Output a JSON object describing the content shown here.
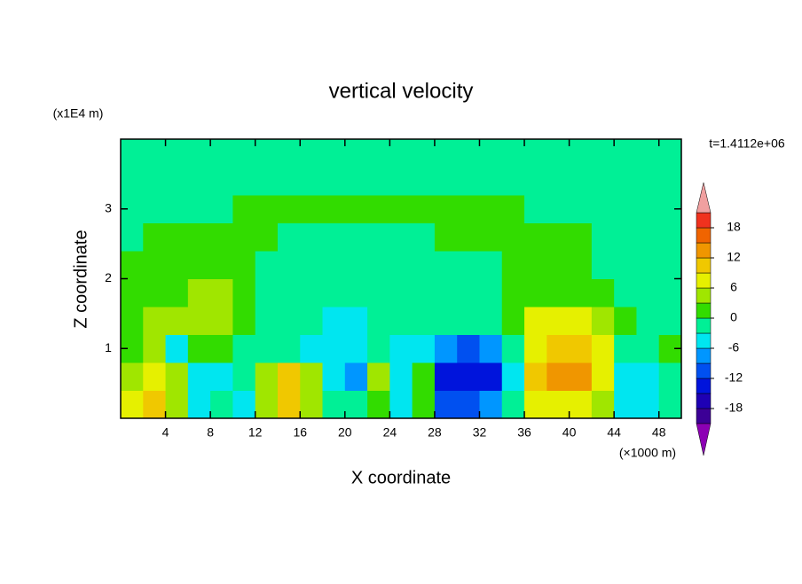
{
  "chart_data": {
    "type": "contour",
    "title": "vertical velocity",
    "xlabel": "X coordinate",
    "ylabel": "Z coordinate",
    "xunit": "(×1000 m)",
    "yunit": "(x1E4 m)",
    "time_label": "t=1.4112e+06",
    "xlim": [
      0,
      50
    ],
    "ylim": [
      0,
      4
    ],
    "xticks": [
      4,
      8,
      12,
      16,
      20,
      24,
      28,
      32,
      36,
      40,
      44,
      48
    ],
    "yticks": [
      1,
      2,
      3
    ],
    "x": [
      1,
      3,
      5,
      7,
      9,
      11,
      13,
      15,
      17,
      19,
      21,
      23,
      25,
      27,
      29,
      31,
      33,
      35,
      37,
      39,
      41,
      43,
      45,
      47,
      49
    ],
    "y": [
      0.2,
      0.6,
      1.0,
      1.4,
      1.8,
      2.2,
      2.6,
      3.0,
      3.4,
      3.8
    ],
    "z": [
      [
        8,
        10,
        5,
        -4,
        -1,
        -4,
        3,
        11,
        5,
        -1,
        -1,
        1,
        -4,
        1,
        -12,
        -11,
        -7,
        -1,
        6,
        8,
        8,
        5,
        -4,
        -6,
        -1
      ],
      [
        5,
        7,
        3,
        -4,
        -4,
        -1,
        4,
        9,
        3,
        -6,
        -9,
        4,
        -4,
        1,
        -13,
        -15,
        -13,
        -4,
        9,
        12,
        14,
        8,
        -4,
        -6,
        -1
      ],
      [
        1.5,
        4,
        -4,
        1,
        1,
        -1,
        -1,
        -1,
        -4,
        -4,
        -4,
        -1,
        -4,
        -4,
        -8,
        -10,
        -8,
        -1,
        6,
        10,
        10,
        6,
        -1,
        -1,
        1
      ],
      [
        1.5,
        4,
        4,
        4,
        4,
        1.5,
        -1,
        -1,
        -1,
        -4,
        -4,
        -1,
        -1,
        -1,
        -1,
        -1,
        -1,
        1.5,
        7,
        7,
        7,
        4,
        1.5,
        -1,
        -1
      ],
      [
        1.5,
        1.5,
        1.5,
        4,
        4,
        1.5,
        -1,
        -1,
        -1,
        -1,
        -1,
        -1,
        -1,
        -1,
        -1,
        -1,
        -1,
        1.5,
        1.5,
        1.5,
        1.5,
        1.5,
        -1,
        -1,
        -1
      ],
      [
        1.5,
        1.5,
        1.5,
        1.5,
        1.5,
        1.5,
        -1,
        -1,
        -1,
        -1,
        -1,
        -1,
        -1,
        -1,
        -1,
        -1,
        -1,
        1.5,
        1.5,
        1.5,
        1.5,
        -1,
        -1,
        -1,
        -1
      ],
      [
        -1,
        1,
        1,
        1,
        1,
        1,
        1,
        -1,
        -1,
        -1,
        -1,
        -1,
        -1,
        -1,
        1,
        1,
        1,
        1,
        1,
        1,
        1,
        -1,
        -1,
        -1,
        -1
      ],
      [
        -1,
        -1,
        -1,
        -1,
        -1,
        0.5,
        0.5,
        0.5,
        0.5,
        0.5,
        0.5,
        0.5,
        0.5,
        0.5,
        0.5,
        0.5,
        0.5,
        0.5,
        -1,
        -1,
        -1,
        -1,
        -1,
        -1,
        -1
      ],
      [
        -1,
        -1,
        -1,
        -1,
        -1,
        -1,
        -1,
        -1,
        -1,
        -1,
        -1,
        -1,
        -1,
        -1,
        -1,
        -1,
        -1,
        -1,
        -1,
        -1,
        -1,
        -1,
        -1,
        -1,
        -1
      ],
      [
        -1,
        -1,
        -1,
        -1,
        -1,
        -1,
        -1,
        -1,
        -1,
        -1,
        -1,
        -1,
        -1,
        -1,
        -1,
        -1,
        -1,
        -1,
        -1,
        -1,
        -1,
        -1,
        -1,
        -1,
        -1
      ]
    ],
    "levels": [
      -21,
      -18,
      -15,
      -12,
      -9,
      -6,
      -3,
      0,
      3,
      6,
      9,
      12,
      15,
      18,
      21
    ],
    "colors": [
      "#3c0096",
      "#1e00b4",
      "#0014dc",
      "#0050f0",
      "#0096ff",
      "#00e6f0",
      "#00f096",
      "#32dc00",
      "#a0e600",
      "#e6f000",
      "#f0c800",
      "#f09600",
      "#f06400",
      "#f0321e"
    ],
    "extend_colors": [
      "#8c00b4",
      "#f0a0a0"
    ],
    "colorbar_ticks": [
      -18,
      -12,
      -6,
      0,
      6,
      12,
      18
    ]
  }
}
